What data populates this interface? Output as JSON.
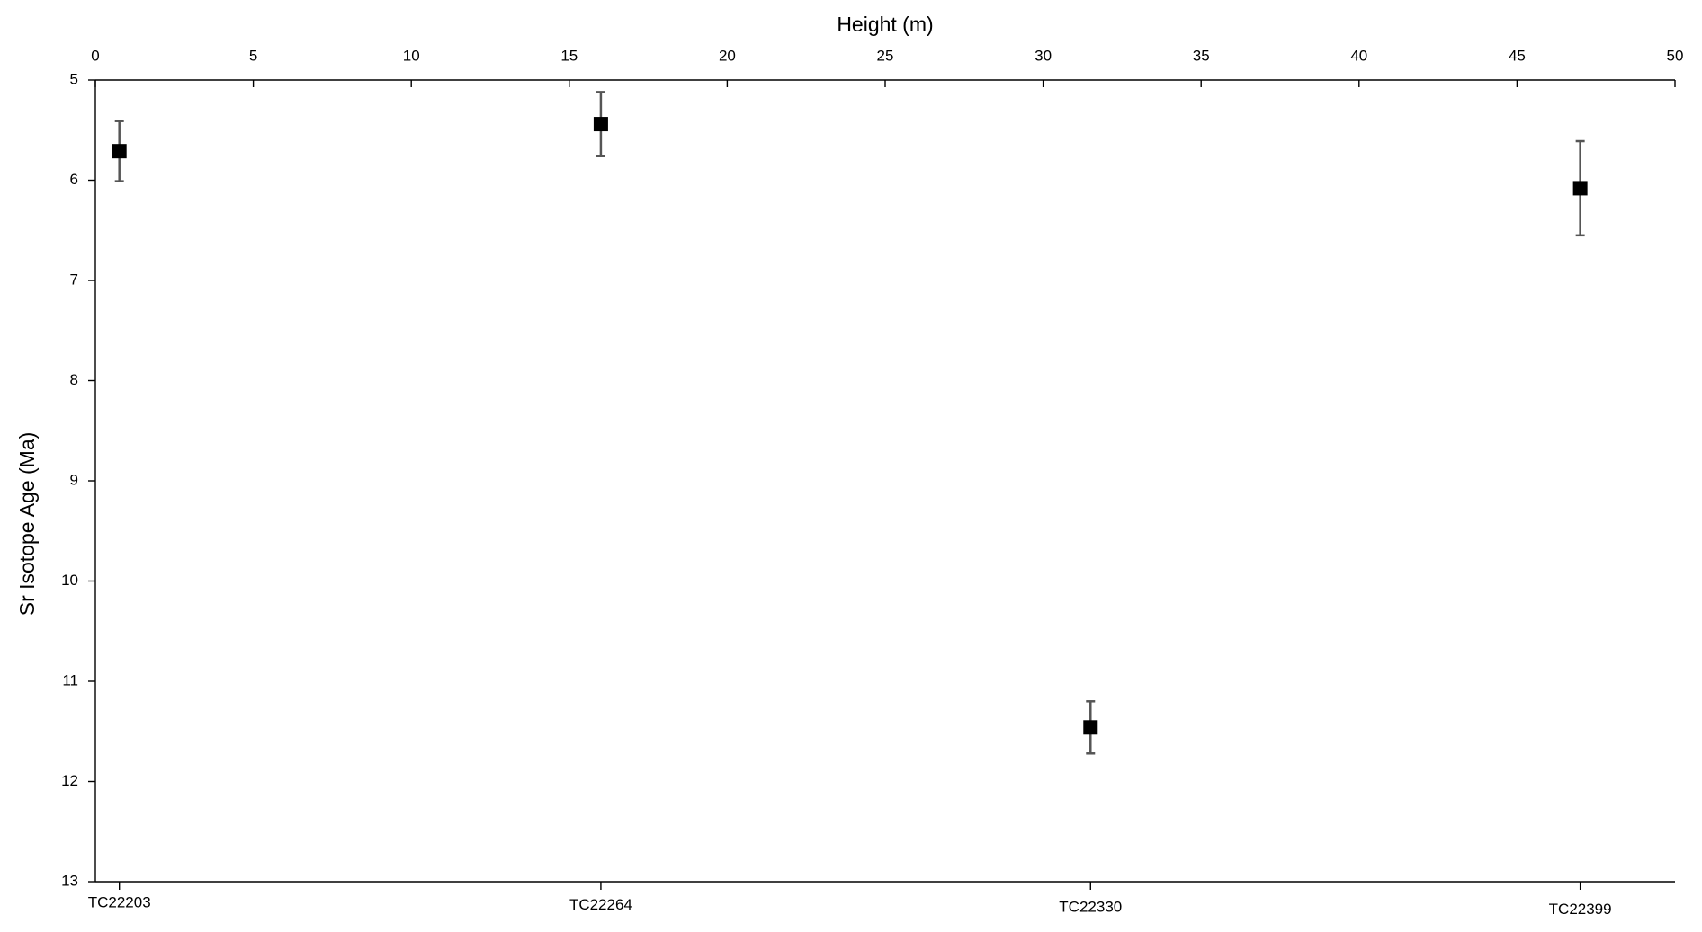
{
  "chart_data": {
    "type": "scatter",
    "x_label": "Height (m)",
    "y_label": "Sr Isotope Age (Ma)",
    "x": [
      0.76,
      16.0,
      31.5,
      47.0
    ],
    "values": [
      5.71,
      5.44,
      11.46,
      6.08
    ],
    "errors": [
      0.3,
      0.32,
      0.26,
      0.47
    ],
    "labels": [
      "TC22203",
      "TC22264",
      "TC22330",
      "TC22399"
    ],
    "color": "#000000",
    "xlim": [
      0,
      50
    ],
    "xticks": [
      0,
      5,
      10,
      15,
      20,
      25,
      30,
      35,
      40,
      45,
      50
    ],
    "ylim": [
      5,
      13
    ],
    "yticks": [
      5,
      6,
      7,
      8,
      9,
      10,
      11,
      12,
      13
    ],
    "y_inverted": true,
    "x_axis_position": "top"
  }
}
